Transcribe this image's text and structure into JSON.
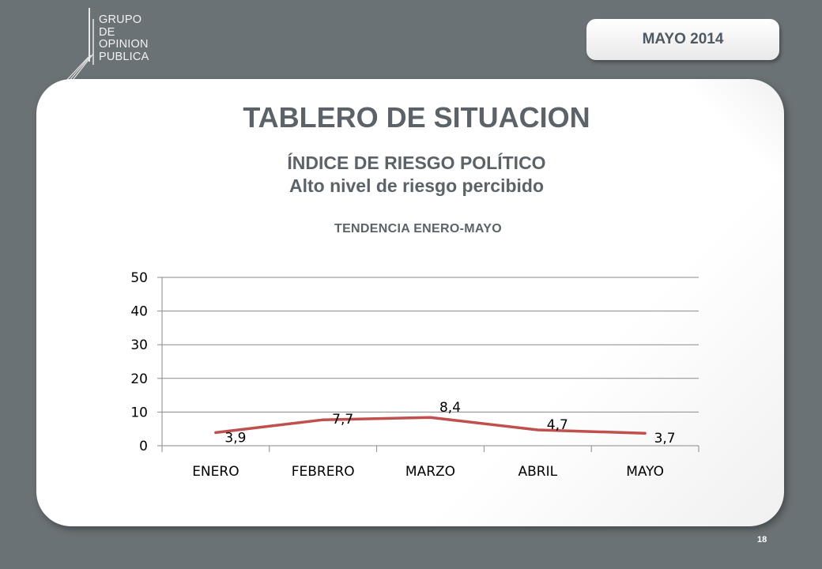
{
  "header": {
    "logo_lines": [
      "GRUPO",
      "DE",
      "OPINION",
      "PUBLICA"
    ],
    "date_label": "MAYO 2014"
  },
  "card": {
    "title": "TABLERO DE SITUACION",
    "subtitle_line1": "ÍNDICE DE RIESGO POLÍTICO",
    "subtitle_line2": "Alto nivel de riesgo percibido",
    "trend_label": "TENDENCIA ENERO-MAYO"
  },
  "chart_data": {
    "type": "line",
    "categories": [
      "ENERO",
      "FEBRERO",
      "MARZO",
      "ABRIL",
      "MAYO"
    ],
    "series": [
      {
        "values": [
          3.9,
          7.7,
          8.4,
          4.7,
          3.7
        ],
        "labels": [
          "3,9",
          "7,7",
          "8,4",
          "4,7",
          "3,7"
        ],
        "color": "#c0504d"
      }
    ],
    "ylim": [
      0,
      50
    ],
    "yticks": [
      0,
      10,
      20,
      30,
      40,
      50
    ],
    "grid": true,
    "legend": false
  },
  "footer": {
    "page_number": "18"
  }
}
